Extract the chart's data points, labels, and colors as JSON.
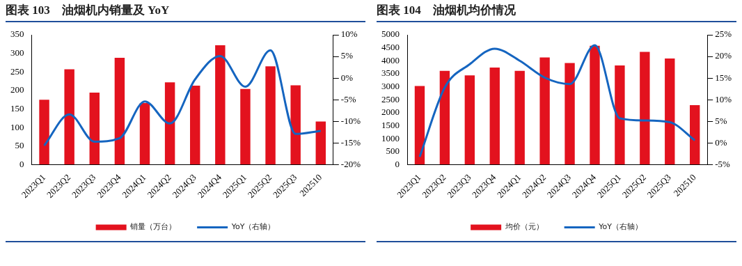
{
  "chart_data": [
    {
      "type": "bar",
      "title": "图表 103　油烟机内销量及 YoY",
      "categories": [
        "2023Q1",
        "2023Q2",
        "2023Q3",
        "2023Q4",
        "2024Q1",
        "2024Q2",
        "2024Q3",
        "2024Q4",
        "2025Q1",
        "2025Q2",
        "2025Q3",
        "202510"
      ],
      "series": [
        {
          "name": "销量（万台）",
          "color": "#e3121e",
          "values": [
            175,
            257,
            194,
            288,
            166,
            222,
            213,
            322,
            204,
            265,
            214,
            116
          ]
        },
        {
          "name": "YoY（右轴）",
          "type": "line",
          "axis": "y2",
          "color": "#1565c0",
          "values": [
            -15.6,
            -8.4,
            -14.7,
            -13.9,
            -5.4,
            -10.5,
            -0.3,
            5.1,
            -2.0,
            6.4,
            -12.9,
            -12.2
          ]
        }
      ],
      "ylim": [
        0,
        350
      ],
      "yticks": [
        0,
        50,
        100,
        150,
        200,
        250,
        300,
        350
      ],
      "y2lim": [
        -20,
        10
      ],
      "y2ticks": [
        {
          "value": -20,
          "label": "-20%"
        },
        {
          "value": -15,
          "label": "-15%"
        },
        {
          "value": -10,
          "label": "-10%"
        },
        {
          "value": -5,
          "label": "-5%"
        },
        {
          "value": 0,
          "label": "0%"
        },
        {
          "value": 5,
          "label": "5%"
        },
        {
          "value": 10,
          "label": "10%"
        }
      ],
      "grid": false,
      "legend": "bottom",
      "marker": "none"
    },
    {
      "type": "bar",
      "title": "图表 104　油烟机均价情况",
      "categories": [
        "2023Q1",
        "2023Q2",
        "2023Q3",
        "2023Q4",
        "2024Q1",
        "2024Q2",
        "2024Q3",
        "2024Q4",
        "2025Q1",
        "2025Q2",
        "2025Q3",
        "202510"
      ],
      "series": [
        {
          "name": "均价（元）",
          "color": "#e3121e",
          "values": [
            3030,
            3610,
            3440,
            3740,
            3610,
            4130,
            3910,
            4580,
            3820,
            4340,
            4090,
            2290
          ]
        },
        {
          "name": "YoY（右轴）",
          "type": "line",
          "axis": "y2",
          "color": "#1565c0",
          "values": [
            -3.2,
            12.8,
            18.2,
            21.8,
            19.0,
            15.1,
            13.6,
            22.6,
            5.7,
            5.2,
            4.8,
            0.6
          ]
        }
      ],
      "ylim": [
        0,
        5000
      ],
      "yticks": [
        0,
        500,
        1000,
        1500,
        2000,
        2500,
        3000,
        3500,
        4000,
        4500,
        5000
      ],
      "y2lim": [
        -5,
        25
      ],
      "y2ticks": [
        {
          "value": -5,
          "label": "-5%"
        },
        {
          "value": 0,
          "label": "0%"
        },
        {
          "value": 5,
          "label": "5%"
        },
        {
          "value": 10,
          "label": "10%"
        },
        {
          "value": 15,
          "label": "15%"
        },
        {
          "value": 20,
          "label": "20%"
        },
        {
          "value": 25,
          "label": "25%"
        }
      ],
      "grid": false,
      "legend": "bottom",
      "marker": "none"
    }
  ]
}
